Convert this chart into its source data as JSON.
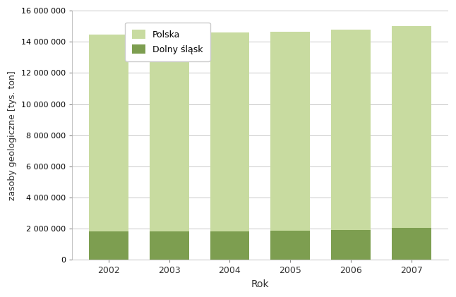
{
  "years": [
    2002,
    2003,
    2004,
    2005,
    2006,
    2007
  ],
  "polska_total": [
    14450000,
    14500000,
    14600000,
    14650000,
    14800000,
    15000000
  ],
  "dolny_slask": [
    1820000,
    1830000,
    1840000,
    1855000,
    1900000,
    2050000
  ],
  "color_light": "#c8dba0",
  "color_dark": "#7d9e50",
  "ylabel": "zasoby geologiczne [tys. ton]",
  "xlabel": "Rok",
  "ylim": [
    0,
    16000000
  ],
  "yticks": [
    0,
    2000000,
    4000000,
    6000000,
    8000000,
    10000000,
    12000000,
    14000000,
    16000000
  ],
  "legend_polska": "Polska",
  "legend_dolny": "Dolny śląsk",
  "background_color": "#ffffff",
  "grid_color": "#c8c8c8"
}
